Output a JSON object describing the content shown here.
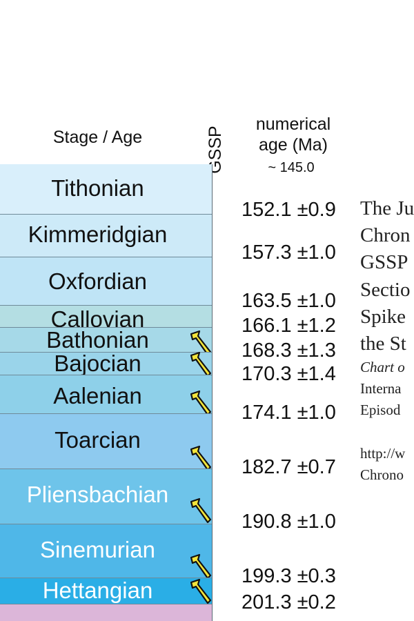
{
  "headers": {
    "stage_age": "Stage / Age",
    "gssp": "GSSP",
    "numerical_age_line1": "numerical",
    "numerical_age_line2": "age (Ma)",
    "top_age": "~ 145.0"
  },
  "colors": {
    "gssp_spike_fill": "#f3e43a",
    "gssp_spike_stroke": "#111111",
    "stage_divider": "#6f8a99",
    "below_column": "#dcb6d9"
  },
  "chart_data": {
    "type": "table",
    "title": "",
    "columns": [
      "Stage / Age",
      "GSSP",
      "numerical age (Ma)"
    ],
    "top_boundary_age": "~ 145.0",
    "stages": [
      {
        "name": "Tithonian",
        "base_age": "152.1 ±0.9",
        "gssp": false,
        "color": "#d9effb",
        "text_color": "#111111"
      },
      {
        "name": "Kimmeridgian",
        "base_age": "157.3 ±1.0",
        "gssp": false,
        "color": "#cdeaf8",
        "text_color": "#111111"
      },
      {
        "name": "Oxfordian",
        "base_age": "163.5 ±1.0",
        "gssp": false,
        "color": "#bfe4f6",
        "text_color": "#111111"
      },
      {
        "name": "Callovian",
        "base_age": "166.1 ±1.2",
        "gssp": false,
        "color": "#b4dee3",
        "text_color": "#111111"
      },
      {
        "name": "Bathonian",
        "base_age": "168.3 ±1.3",
        "gssp": true,
        "color": "#a6d9e8",
        "text_color": "#111111"
      },
      {
        "name": "Bajocian",
        "base_age": "170.3 ±1.4",
        "gssp": true,
        "color": "#9ad4ea",
        "text_color": "#111111"
      },
      {
        "name": "Aalenian",
        "base_age": "174.1 ±1.0",
        "gssp": true,
        "color": "#8ed0e9",
        "text_color": "#111111"
      },
      {
        "name": "Toarcian",
        "base_age": "182.7 ±0.7",
        "gssp": true,
        "color": "#8ecaef",
        "text_color": "#111111"
      },
      {
        "name": "Pliensbachian",
        "base_age": "190.8 ±1.0",
        "gssp": true,
        "color": "#6ec4ea",
        "text_color": "#ffffff"
      },
      {
        "name": "Sinemurian",
        "base_age": "199.3 ±0.3",
        "gssp": true,
        "color": "#4fb7e8",
        "text_color": "#ffffff"
      },
      {
        "name": "Hettangian",
        "base_age": "201.3 ±0.2",
        "gssp": true,
        "color": "#2aaee6",
        "text_color": "#ffffff"
      }
    ]
  },
  "side_text": {
    "l1": "The Ju",
    "l2": "Chron",
    "l3": "GSSP",
    "l4": "Sectio",
    "l5": "Spike",
    "l6": "the St",
    "l7": "Chart o",
    "l8": "Interna",
    "l9": "Episod",
    "l10": "http://w",
    "l11": "Chrono"
  }
}
